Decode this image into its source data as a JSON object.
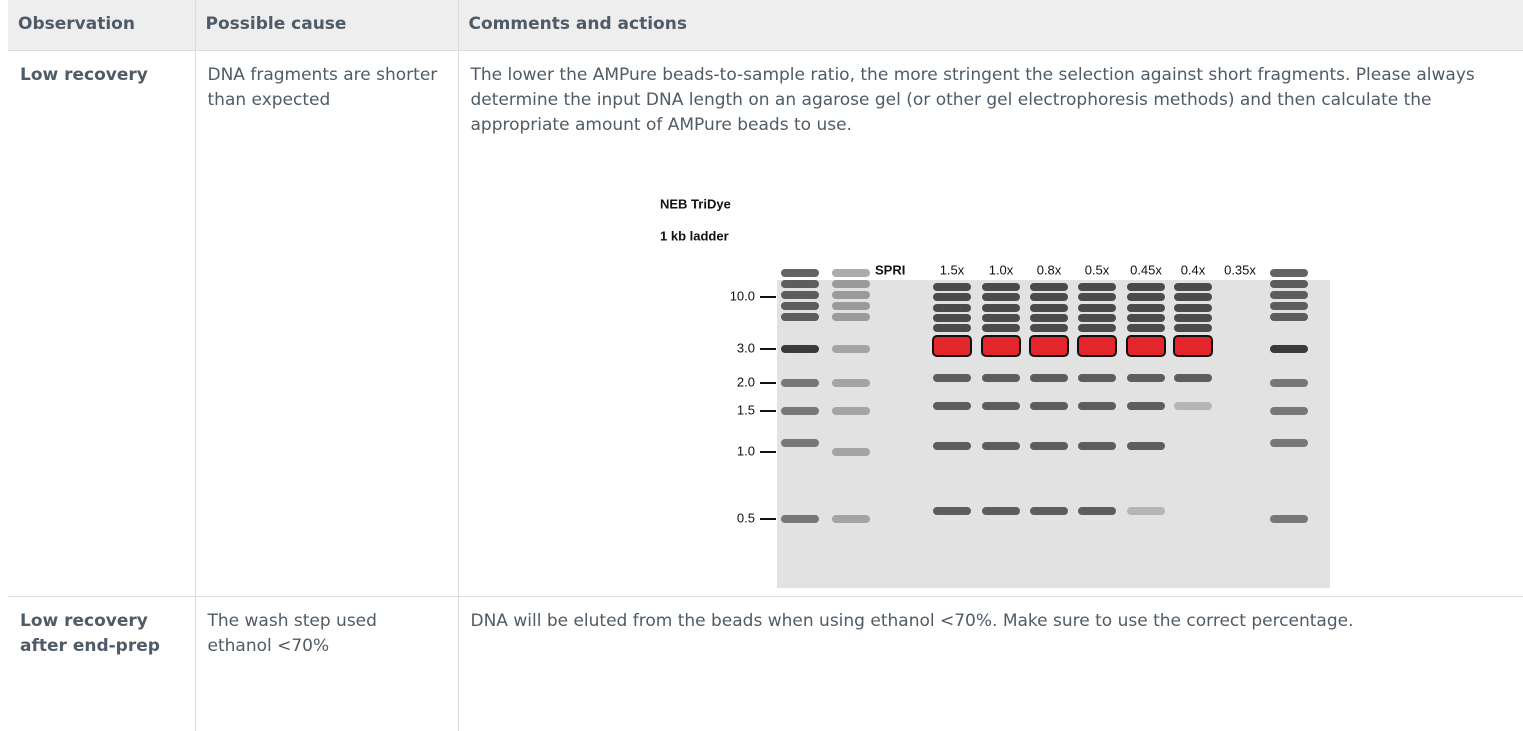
{
  "table": {
    "header": [
      "Observation",
      "Possible cause",
      "Comments and actions"
    ],
    "rows": [
      [
        "Low recovery",
        "DNA fragments are shorter than expected",
        "The lower the AMPure beads-to-sample ratio, the more stringent the selection against short fragments. Please always determine the input DNA length on an agarose gel (or other gel electrophoresis methods) and then calculate the appropriate amount of AMPure beads to use."
      ],
      [
        "Low recovery after end-prep",
        "The wash step used ethanol <70%",
        "DNA will be eluted from the beads when using ethanol <70%. Make sure to use the correct percentage."
      ]
    ]
  },
  "figure": {
    "title_lines": [
      "NEB TriDye",
      "1 kb ladder"
    ],
    "lane_group_label": "SPRI",
    "lane_labels": [
      "1.5x",
      "1.0x",
      "0.8x",
      "0.5x",
      "0.45x",
      "0.4x",
      "0.35x"
    ],
    "size_markers": [
      "10.0",
      "3.0",
      "2.0",
      "1.5",
      "1.0",
      "0.5"
    ]
  }
}
